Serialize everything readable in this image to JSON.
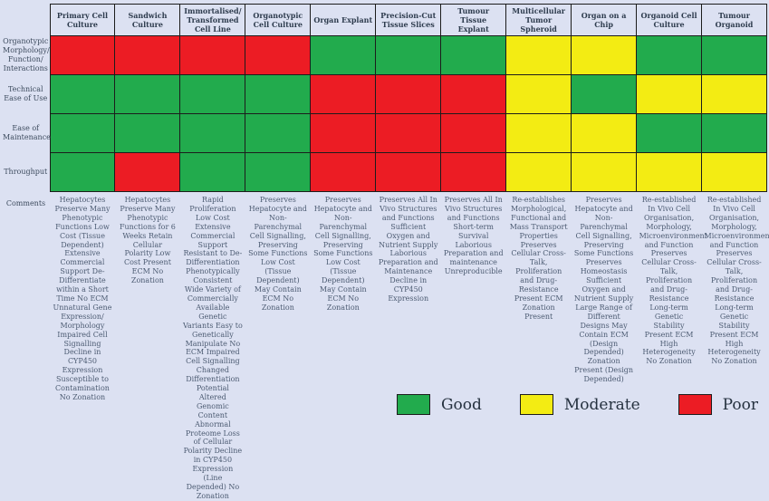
{
  "legend": {
    "items": [
      {
        "label": "Good",
        "key": "good",
        "color": "#22ab4d"
      },
      {
        "label": "Moderate",
        "key": "moderate",
        "color": "#f3ec13"
      },
      {
        "label": "Poor",
        "key": "poor",
        "color": "#ec1c24"
      }
    ]
  },
  "chart_data": {
    "type": "heatmap",
    "title": "",
    "rating_colors": {
      "good": "#22ab4d",
      "moderate": "#f3ec13",
      "poor": "#ec1c24"
    },
    "columns": [
      "Primary Cell Culture",
      "Sandwich Culture",
      "Immortalised/ Transformed Cell Line",
      "Organotypic Cell Culture",
      "Organ Explant",
      "Precision-Cut Tissue Slices",
      "Tumour Tissue Explant",
      "Multicellular Tumor Spheroid",
      "Organ on a Chip",
      "Organoid Cell Culture",
      "Tumour Organoid"
    ],
    "row_labels": [
      "Organotypic Morphology/ Function/ Interactions",
      "Technical Ease of Use",
      "Ease of Maintenance",
      "Throughput"
    ],
    "ratings": [
      [
        "poor",
        "poor",
        "poor",
        "poor",
        "good",
        "good",
        "good",
        "moderate",
        "moderate",
        "good",
        "good"
      ],
      [
        "good",
        "good",
        "good",
        "good",
        "poor",
        "poor",
        "poor",
        "moderate",
        "good",
        "moderate",
        "moderate"
      ],
      [
        "good",
        "good",
        "good",
        "good",
        "poor",
        "poor",
        "poor",
        "moderate",
        "moderate",
        "good",
        "good"
      ],
      [
        "good",
        "poor",
        "good",
        "good",
        "poor",
        "poor",
        "poor",
        "moderate",
        "moderate",
        "moderate",
        "moderate"
      ]
    ],
    "comments_label": "Comments",
    "comments": [
      "Hepatocytes Preserve Many Phenotypic Functions Low Cost (Tissue Dependent) Extensive Commercial Support De-Differentiate within a Short Time No ECM Unnatural Gene Expression/ Morphology Impaired Cell Signalling Decline in CYP450 Expression Susceptible to Contamination No Zonation",
      "Hepatocytes Preserve Many Phenotypic Functions for 6 Weeks Retain Cellular Polarity Low Cost Present ECM No Zonation",
      "Rapid Proliferation Low Cost Extensive Commercial Support Resistant to De-Differentiation Phenotypically Consistent Wide Variety of Commercially Available Genetic Variants Easy to Genetically Manipulate No ECM Impaired Cell Signalling Changed Differentiation Potential Altered Genomic Content Abnormal Proteome Loss of Cellular Polarity Decline in CYP450 Expression (Line Depended) No Zonation",
      "Preserves Hepatocyte and Non-Parenchymal Cell Signalling, Preserving Some Functions Low Cost (Tissue Dependent) May Contain ECM No Zonation",
      "Preserves Hepatocyte and Non-Parenchymal Cell Signalling, Preserving Some Functions Low Cost (Tissue Dependent) May Contain ECM No Zonation",
      "Preserves All In Vivo Structures and Functions Sufficient Oxygen and Nutrient Supply Laborious Preparation and Maintenance Decline in CYP450 Expression",
      "Preserves All In Vivo Structures and Functions Short-term Survival Laborious Preparation and maintenance Unreproducible",
      "Re-establishes Morphological, Functional and Mass Transport Properties Preserves Cellular Cross-Talk, Proliferation and Drug-Resistance Present ECM Zonation Present",
      "Preserves Hepatocyte and Non-Parenchymal Cell Signalling, Preserving Some Functions Preserves Homeostasis Sufficient Oxygen and Nutrient Supply Large Range of Different Designs May Contain ECM (Design Depended) Zonation Present (Design Depended)",
      "Re-established In Vivo Cell Organisation, Morphology, Microenvironment and Function Preserves Cellular Cross-Talk, Proliferation and Drug-Resistance Long-term Genetic Stability Present ECM High Heterogeneity No Zonation",
      "Re-established In Vivo Cell Organisation, Morphology, Microenvironment and Function Preserves Cellular Cross-Talk, Proliferation and Drug-Resistance Long-term Genetic Stability Present ECM High Heterogeneity No Zonation"
    ]
  }
}
